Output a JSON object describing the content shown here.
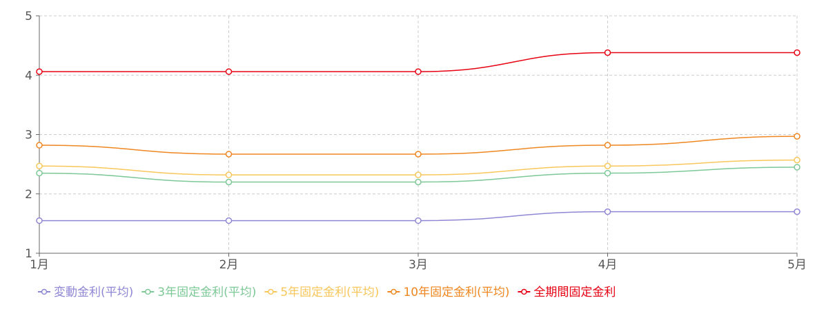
{
  "chart_data": {
    "type": "line",
    "categories": [
      "1月",
      "2月",
      "3月",
      "4月",
      "5月"
    ],
    "ylim": [
      1,
      5
    ],
    "yticks": [
      1,
      2,
      3,
      4,
      5
    ],
    "grid": true,
    "legend": "bottom",
    "series": [
      {
        "name": "変動金利(平均)",
        "color": "#8e86d4",
        "values": [
          1.55,
          1.55,
          1.55,
          1.7,
          1.7
        ]
      },
      {
        "name": "3年固定金利(平均)",
        "color": "#7cc896",
        "values": [
          2.35,
          2.2,
          2.2,
          2.35,
          2.45
        ]
      },
      {
        "name": "5年固定金利(平均)",
        "color": "#f8c65a",
        "values": [
          2.47,
          2.32,
          2.32,
          2.47,
          2.57
        ]
      },
      {
        "name": "10年固定金利(平均)",
        "color": "#ef861f",
        "values": [
          2.82,
          2.67,
          2.67,
          2.82,
          2.97
        ]
      },
      {
        "name": "全期間固定金利",
        "color": "#e60012",
        "values": [
          4.06,
          4.06,
          4.06,
          4.38,
          4.38
        ]
      }
    ]
  }
}
